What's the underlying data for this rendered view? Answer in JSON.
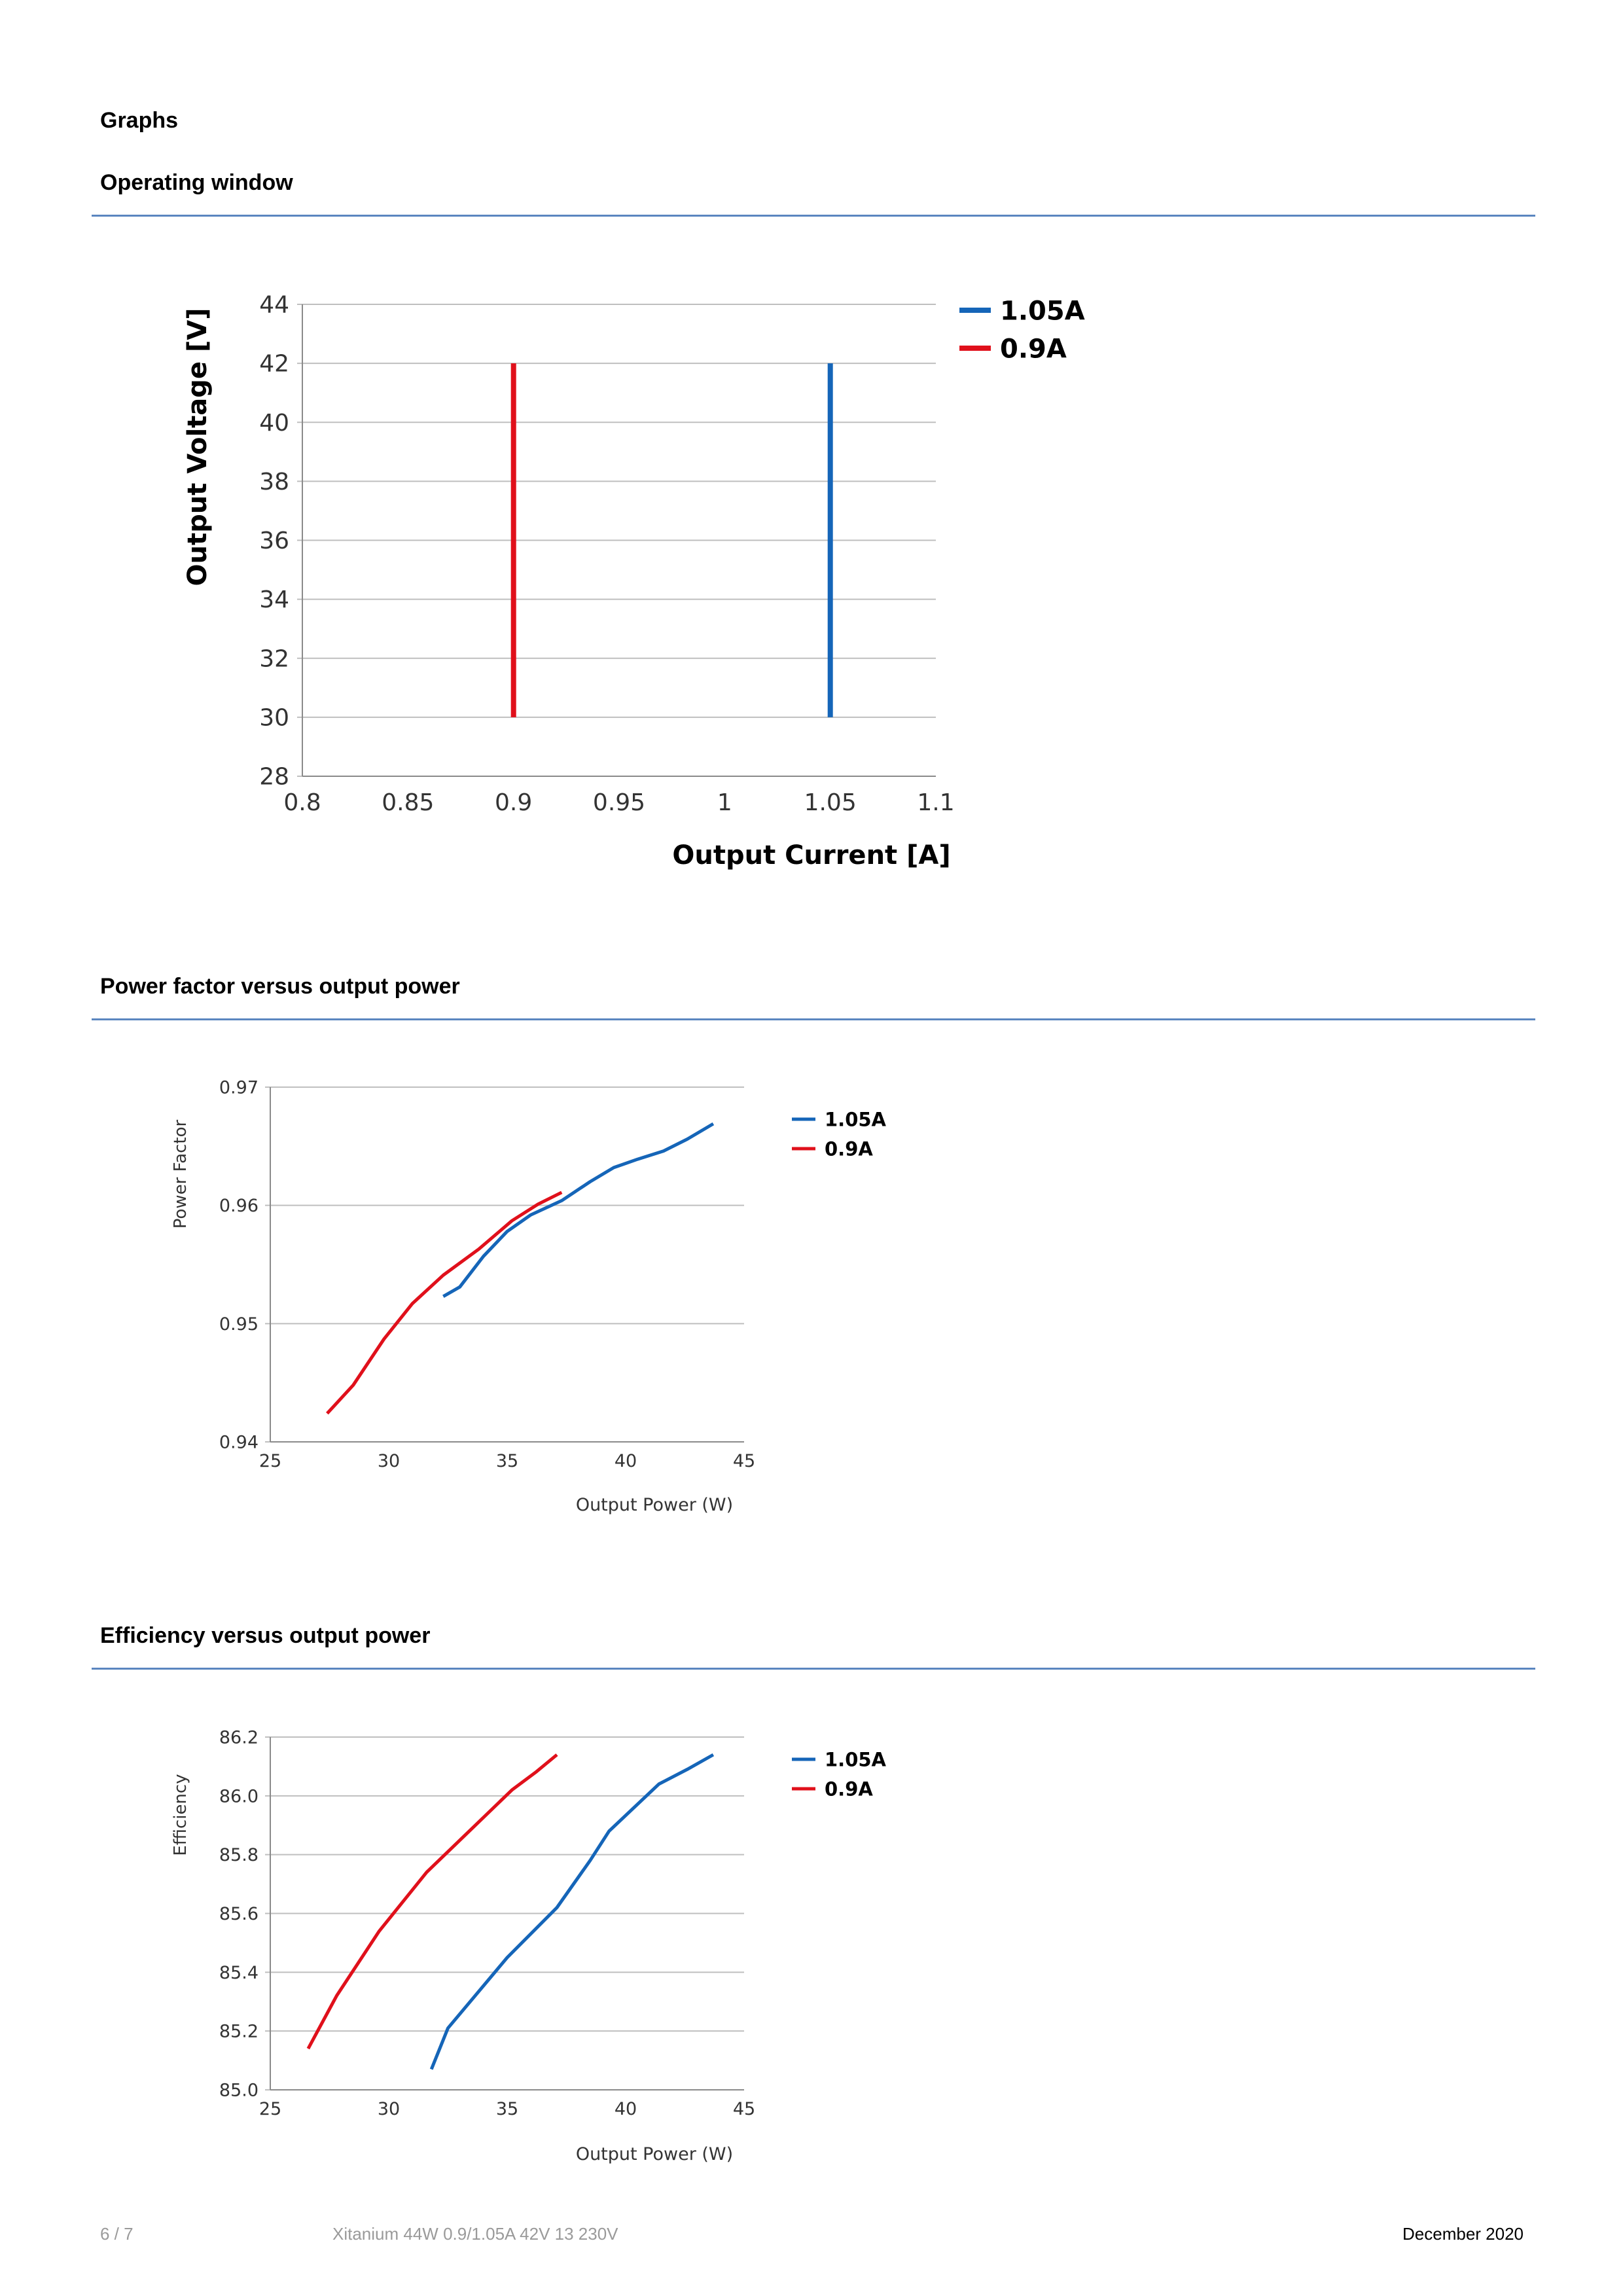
{
  "page": {
    "heading": "Graphs",
    "footer": {
      "page_number": "6 / 7",
      "product": "Xitanium 44W 0.9/1.05A 42V 13 230V",
      "date": "December 2020"
    }
  },
  "sections": [
    {
      "title": "Operating window"
    },
    {
      "title": "Power factor versus output power"
    },
    {
      "title": "Efficiency versus output power"
    }
  ],
  "colors": {
    "series_1_05A": "#1565b8",
    "series_0_9A": "#e0101b",
    "rule": "#5b86c0",
    "grid": "#bfbfbf"
  },
  "chart_data": [
    {
      "type": "line",
      "title": "",
      "xlabel": "Output Current [A]",
      "ylabel": "Output Voltage [V]",
      "xlim": [
        0.8,
        1.1
      ],
      "ylim": [
        28,
        44
      ],
      "x_ticks": [
        0.8,
        0.85,
        0.9,
        0.95,
        1,
        1.05,
        1.1
      ],
      "x_tick_labels": [
        "0.8",
        "0.85",
        "0.9",
        "0.95",
        "1",
        "1.05",
        "1.1"
      ],
      "y_ticks": [
        28,
        30,
        32,
        34,
        36,
        38,
        40,
        42,
        44
      ],
      "y_tick_labels": [
        "28",
        "30",
        "32",
        "34",
        "36",
        "38",
        "40",
        "42",
        "44"
      ],
      "grid": "horizontal",
      "legend": "top-right, outside",
      "series": [
        {
          "name": "1.05A",
          "color": "#1565b8",
          "points": [
            [
              1.05,
              30
            ],
            [
              1.05,
              42
            ]
          ]
        },
        {
          "name": "0.9A",
          "color": "#e0101b",
          "points": [
            [
              0.9,
              30
            ],
            [
              0.9,
              42
            ]
          ]
        }
      ]
    },
    {
      "type": "line",
      "title": "",
      "xlabel": "Output Power (W)",
      "ylabel": "Power Factor",
      "xlim": [
        25,
        45
      ],
      "ylim": [
        0.94,
        0.97
      ],
      "x_ticks": [
        25,
        30,
        35,
        40,
        45
      ],
      "x_tick_labels": [
        "25",
        "30",
        "35",
        "40",
        "45"
      ],
      "y_ticks": [
        0.94,
        0.95,
        0.96,
        0.97
      ],
      "y_tick_labels": [
        "0.94",
        "0.95",
        "0.96",
        "0.97"
      ],
      "grid": "horizontal",
      "legend": "top-right, outside",
      "series": [
        {
          "name": "1.05A",
          "color": "#1565b8",
          "points": [
            [
              32.3,
              0.9523
            ],
            [
              33.0,
              0.9531
            ],
            [
              34.0,
              0.9557
            ],
            [
              35.0,
              0.9578
            ],
            [
              36.0,
              0.9592
            ],
            [
              37.3,
              0.9604
            ],
            [
              38.5,
              0.962
            ],
            [
              39.5,
              0.9632
            ],
            [
              40.5,
              0.9639
            ],
            [
              41.6,
              0.9646
            ],
            [
              42.6,
              0.9656
            ],
            [
              43.7,
              0.9669
            ]
          ]
        },
        {
          "name": "0.9A",
          "color": "#e0101b",
          "points": [
            [
              27.4,
              0.9424
            ],
            [
              28.5,
              0.9448
            ],
            [
              29.8,
              0.9487
            ],
            [
              31.0,
              0.9517
            ],
            [
              32.3,
              0.9541
            ],
            [
              33.8,
              0.9563
            ],
            [
              35.2,
              0.9587
            ],
            [
              36.3,
              0.9601
            ],
            [
              37.3,
              0.9611
            ]
          ]
        }
      ]
    },
    {
      "type": "line",
      "title": "",
      "xlabel": "Output Power (W)",
      "ylabel": "Efficiency",
      "xlim": [
        25,
        45
      ],
      "ylim": [
        85.0,
        86.2
      ],
      "x_ticks": [
        25,
        30,
        35,
        40,
        45
      ],
      "x_tick_labels": [
        "25",
        "30",
        "35",
        "40",
        "45"
      ],
      "y_ticks": [
        85.0,
        85.2,
        85.4,
        85.6,
        85.8,
        86.0,
        86.2
      ],
      "y_tick_labels": [
        "85.0",
        "85.2",
        "85.4",
        "85.6",
        "85.8",
        "86.0",
        "86.2"
      ],
      "grid": "horizontal",
      "legend": "top-right, outside",
      "series": [
        {
          "name": "1.05A",
          "color": "#1565b8",
          "points": [
            [
              31.8,
              85.07
            ],
            [
              32.5,
              85.21
            ],
            [
              35.0,
              85.45
            ],
            [
              37.1,
              85.62
            ],
            [
              38.5,
              85.78
            ],
            [
              39.3,
              85.88
            ],
            [
              41.4,
              86.04
            ],
            [
              42.6,
              86.09
            ],
            [
              43.7,
              86.14
            ]
          ]
        },
        {
          "name": "0.9A",
          "color": "#e0101b",
          "points": [
            [
              26.6,
              85.14
            ],
            [
              27.8,
              85.32
            ],
            [
              29.6,
              85.54
            ],
            [
              31.6,
              85.74
            ],
            [
              33.4,
              85.88
            ],
            [
              35.2,
              86.02
            ],
            [
              36.2,
              86.08
            ],
            [
              37.1,
              86.14
            ]
          ]
        }
      ]
    }
  ]
}
